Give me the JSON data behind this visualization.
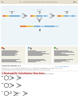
{
  "page_bg": "#ffffff",
  "header_bg": "#e8e0d0",
  "header_text": "11.1  INTRODUCTION TO NUCLEOPHILIC SUBSTITUTION",
  "page_number": "149",
  "diagram_bg": "#eef5f8",
  "chr_bar_height": 2.5,
  "blocks_top1": [
    [
      "#e06020",
      2
    ],
    [
      "#e8b830",
      1.5
    ],
    [
      "#c8c870",
      1
    ],
    [
      "#60a0d0",
      2
    ],
    [
      "#60a0d0",
      1.5
    ],
    [
      "#60a0d0",
      1.5
    ],
    [
      "#60a0d0",
      1.5
    ],
    [
      "#a0c8e8",
      1.5
    ]
  ],
  "blocks_top2": [
    [
      "#e06020",
      2
    ],
    [
      "#e8b830",
      1.5
    ],
    [
      "#c8c870",
      1
    ],
    [
      "#60a0d0",
      2
    ],
    [
      "#60a0d0",
      1.5
    ],
    [
      "#a0c8e8",
      1.5
    ],
    [
      "#60a0d0",
      1.5
    ],
    [
      "#a0c8e8",
      1.5
    ]
  ],
  "blocks_top3": [
    [
      "#e06020",
      2
    ],
    [
      "#e8b830",
      1.5
    ],
    [
      "#c8c870",
      1
    ],
    [
      "#60a0d0",
      2
    ],
    [
      "#a0c8e8",
      1.5
    ],
    [
      "#a0c8e8",
      1.5
    ],
    [
      "#60a0d0",
      1.5
    ],
    [
      "#a0c8e8",
      1.5
    ]
  ],
  "blocks_bot": [
    [
      "#e06020",
      2
    ],
    [
      "#e8b830",
      1.5
    ],
    [
      "#c8c870",
      1
    ],
    [
      "#60a0d0",
      2
    ],
    [
      "#a0c8e8",
      1.5
    ],
    [
      "#60a0d0",
      1.5
    ],
    [
      "#60a0d0",
      1.5
    ],
    [
      "#a0c8e8",
      1.5
    ]
  ],
  "label1": "1",
  "label2": "2",
  "label3": "3",
  "label4": "4",
  "arrow_color": "#777777",
  "text_color": "#333333",
  "gray_text": "#888888",
  "blue_link": "#4488cc",
  "red_head": "#cc3333",
  "section_label": "Section Figures 1.1",
  "skillbuilder": "Skillbuilder",
  "footer_line1": "Related section in the text discusses nucleophilic substitution reactions.  See also section 11.2.",
  "footer_line2": "Lorem ipsum section discussions of substitution reactions and mechanisms.",
  "chem_header": "1 Nucleophilic Substitution Reactions",
  "chem_subtext": "React with nucleophiles. Identify the nucleophile, electrophile, and leaving group.",
  "panel_text_lines": 14
}
